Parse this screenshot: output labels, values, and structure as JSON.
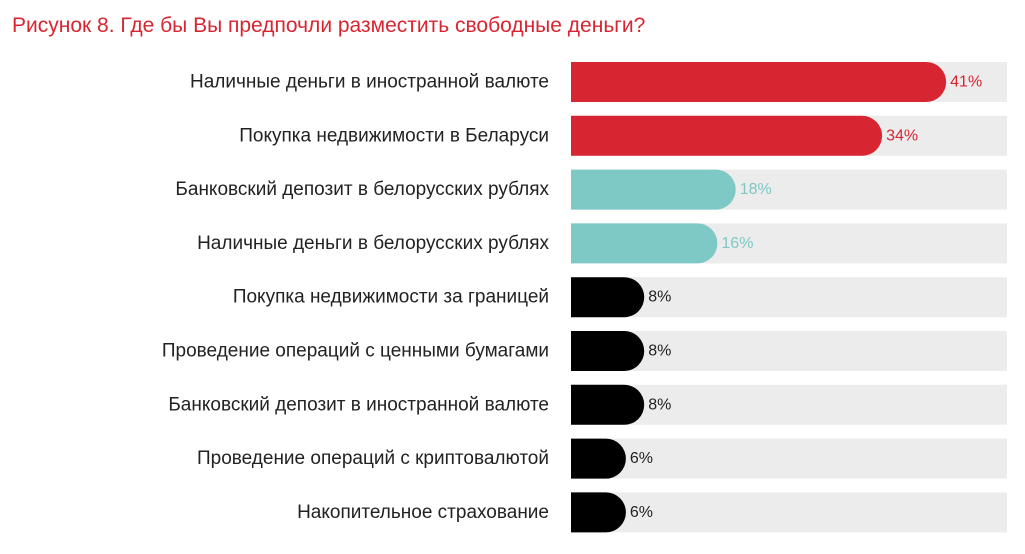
{
  "title": "Рисунок 8. Где бы Вы предпочли разместить свободные деньги?",
  "colors": {
    "title": "#d72631",
    "track": "#ececec",
    "label": "#222222"
  },
  "chart_data": {
    "type": "bar",
    "orientation": "horizontal",
    "xlim": [
      0,
      100
    ],
    "grid": false,
    "legend": "none",
    "categories": [
      "Наличные деньги в иностранной валюте",
      "Покупка недвижимости в Беларуси",
      "Банковский депозит в белорусских рублях",
      "Наличные деньги в белорусских рублях",
      "Покупка недвижимости за границей",
      "Проведение операций с ценными бумагами",
      "Банковский депозит в иностранной валюте",
      "Проведение операций с криптовалютой",
      "Накопительное страхование"
    ],
    "values": [
      41,
      34,
      18,
      16,
      8,
      8,
      8,
      6,
      6
    ],
    "value_labels": [
      "41%",
      "34%",
      "18%",
      "16%",
      "8%",
      "8%",
      "8%",
      "6%",
      "6%"
    ],
    "bar_colors": [
      "#d72631",
      "#d72631",
      "#7ec8c6",
      "#7ec8c6",
      "#000000",
      "#000000",
      "#000000",
      "#000000",
      "#000000"
    ],
    "value_label_colors": [
      "#d72631",
      "#d72631",
      "#7ec8c6",
      "#7ec8c6",
      "#222222",
      "#222222",
      "#222222",
      "#222222",
      "#222222"
    ]
  }
}
